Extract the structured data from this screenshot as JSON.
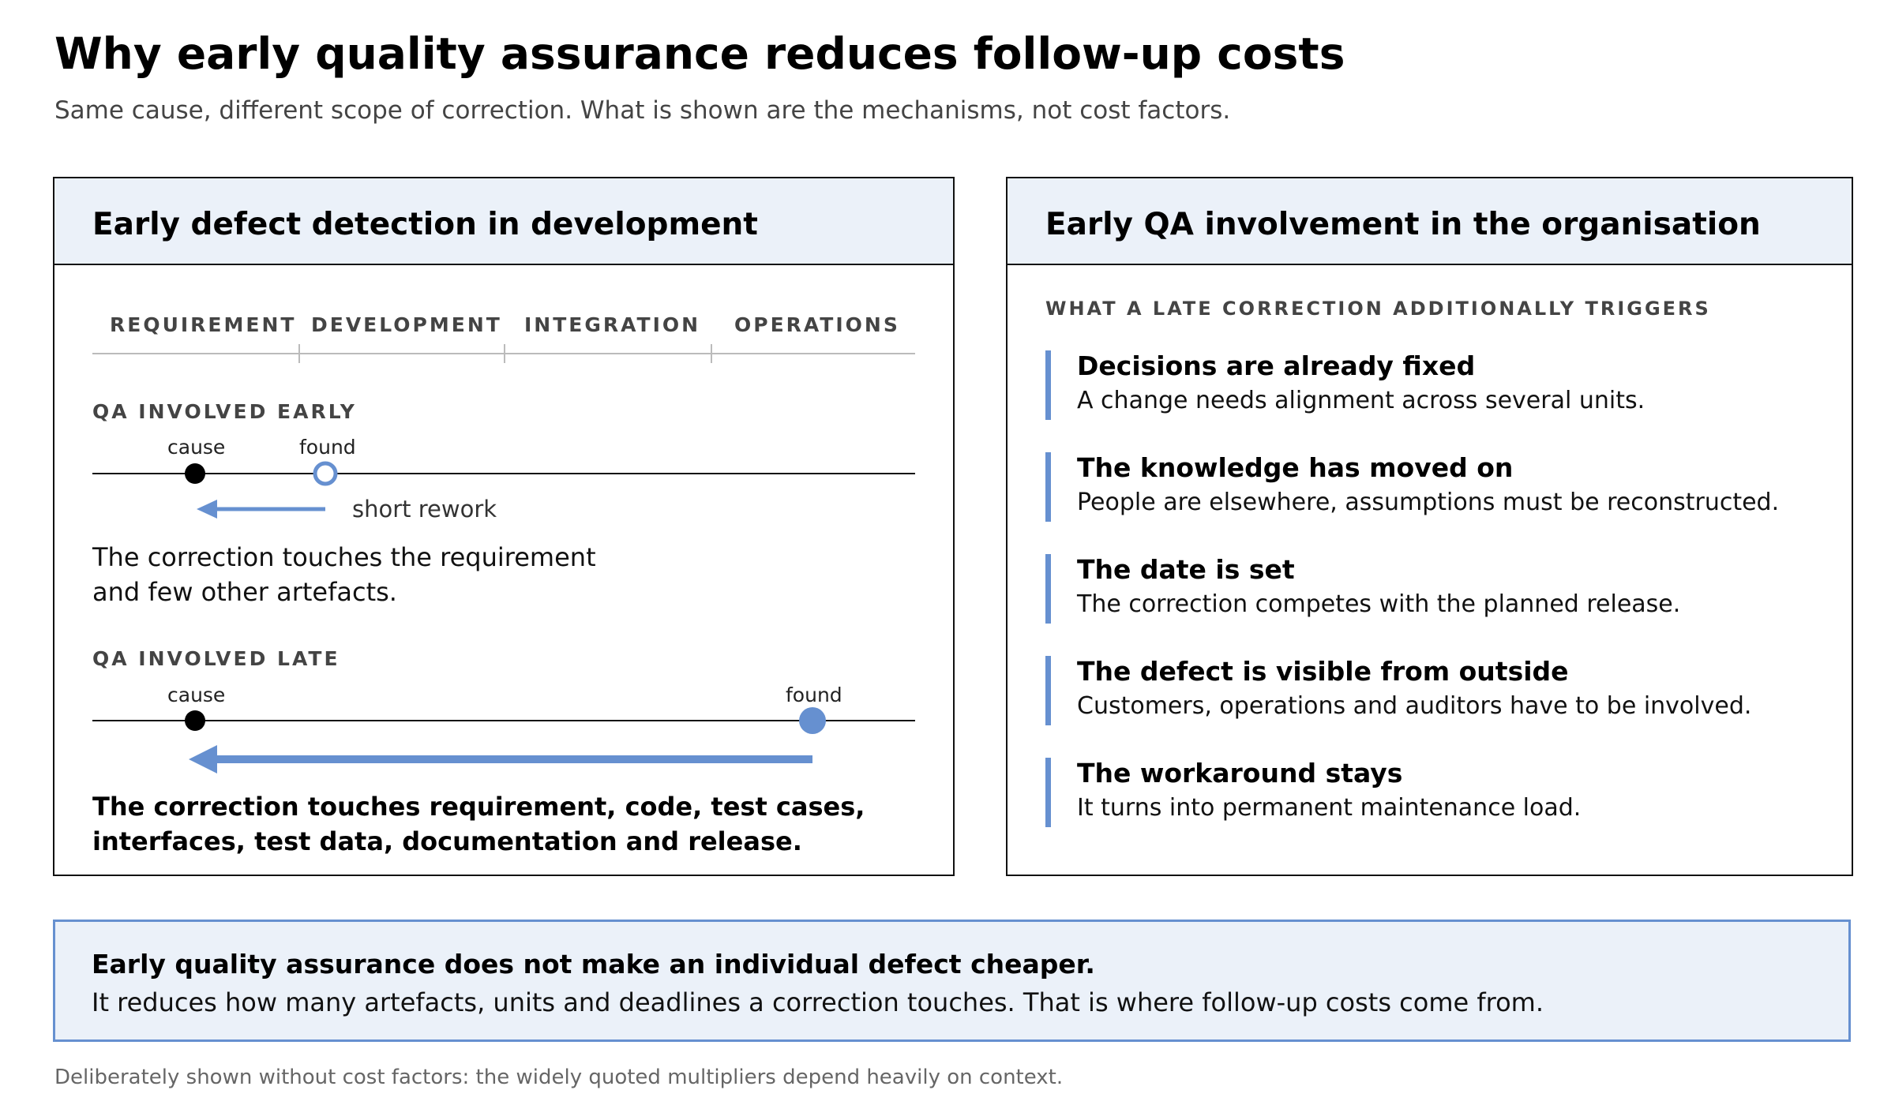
{
  "header": {
    "title": "Why early quality assurance reduces follow-up costs",
    "subtitle": "Same cause, different scope of correction. What is shown are the mechanisms, not cost factors."
  },
  "left_panel": {
    "title": "Early defect detection in development",
    "phases": [
      "REQUIREMENT",
      "DEVELOPMENT",
      "INTEGRATION",
      "OPERATIONS"
    ],
    "early": {
      "label": "QA INVOLVED EARLY",
      "cause_label": "cause",
      "found_label": "found",
      "arrow_label": "short rework",
      "text_line1": "The correction touches the requirement",
      "text_line2": "and few other artefacts."
    },
    "late": {
      "label": "QA INVOLVED LATE",
      "cause_label": "cause",
      "found_label": "found",
      "text_line1": "The correction touches requirement, code, test cases,",
      "text_line2": "interfaces, test data, documentation and release."
    }
  },
  "right_panel": {
    "title": "Early QA involvement in the organisation",
    "section_label": "WHAT A LATE CORRECTION ADDITIONALLY TRIGGERS",
    "items": [
      {
        "title": "Decisions are already fixed",
        "text": "A change needs alignment across several units."
      },
      {
        "title": "The knowledge has moved on",
        "text": "People are elsewhere, assumptions must be reconstructed."
      },
      {
        "title": "The date is set",
        "text": "The correction competes with the planned release."
      },
      {
        "title": "The defect is visible from outside",
        "text": "Customers, operations and auditors have to be involved."
      },
      {
        "title": "The workaround stays",
        "text": "It turns into permanent maintenance load."
      }
    ]
  },
  "summary": {
    "headline": "Early quality assurance does not make an individual defect cheaper.",
    "text": "It reduces how many artefacts, units and deadlines a correction touches. That is where follow-up costs come from."
  },
  "footnote": "Deliberately shown without cost factors: the widely quoted multipliers depend heavily on context.",
  "colors": {
    "accent": "#6690d0",
    "panel_header_bg": "#ebf1f9",
    "border": "#111111",
    "muted_text": "#444444",
    "footnote_text": "#666666"
  }
}
